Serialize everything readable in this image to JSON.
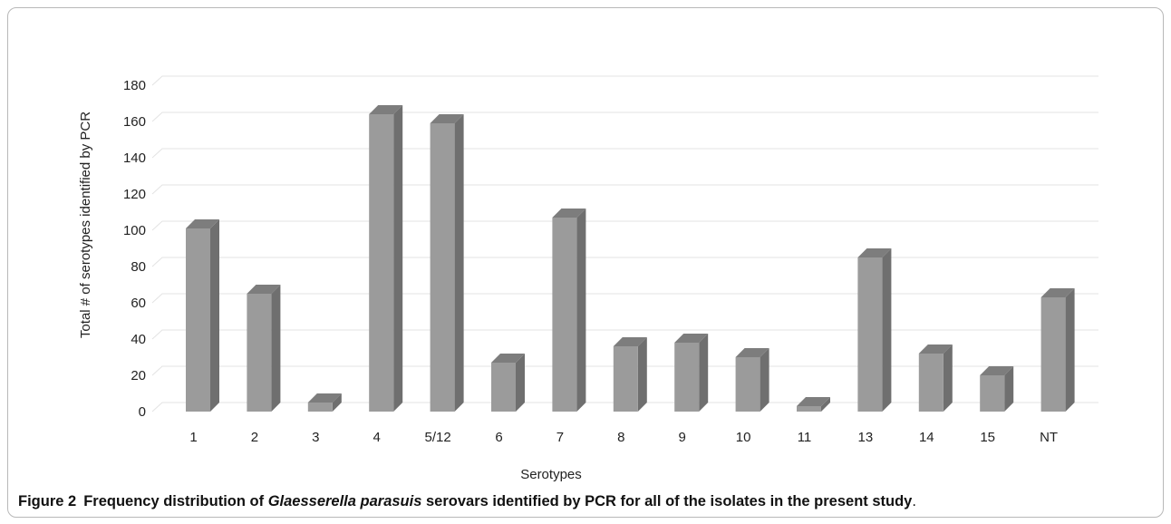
{
  "chart_data": {
    "type": "bar",
    "style": "3d-column",
    "categories": [
      "1",
      "2",
      "3",
      "4",
      "5/12",
      "6",
      "7",
      "8",
      "9",
      "10",
      "11",
      "13",
      "14",
      "15",
      "NT"
    ],
    "values": [
      101,
      65,
      5,
      164,
      159,
      27,
      107,
      36,
      38,
      30,
      3,
      85,
      32,
      20,
      63
    ],
    "xlabel": "Serotypes",
    "ylabel": "Total # of serotypes identified by PCR",
    "ylim": [
      0,
      180
    ],
    "yticks": [
      0,
      20,
      40,
      60,
      80,
      100,
      120,
      140,
      160,
      180
    ],
    "grid": true,
    "colors": {
      "front": "#9b9b9b",
      "side": "#6f6f6f",
      "top": "#7d7d7d",
      "grid": "#e3e3e3"
    }
  },
  "caption": {
    "label": "Figure 2",
    "text_before": "Frequency distribution of ",
    "species": "Glaesserella parasuis",
    "text_after": " serovars identified by PCR for all of the isolates in the present study",
    "end": "."
  }
}
